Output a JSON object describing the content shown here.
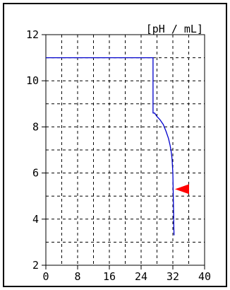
{
  "chart_data": {
    "type": "line",
    "units_label": "[pH / mL]",
    "xlim": [
      0,
      40
    ],
    "ylim": [
      2,
      12
    ],
    "x_ticks": [
      0,
      8,
      16,
      24,
      32,
      40
    ],
    "y_ticks": [
      2,
      4,
      6,
      8,
      10,
      12
    ],
    "x_grid_step": 4,
    "y_grid_step": 1,
    "grid": "dotted",
    "series": [
      {
        "color": "#0000cc",
        "x": [
          0,
          27.0,
          27.0,
          27.4,
          28.0,
          28.8,
          29.6,
          30.3,
          30.9,
          31.3,
          31.6,
          31.8,
          32.0,
          32.1,
          32.2,
          32.25,
          32.3
        ],
        "y": [
          11.0,
          11.0,
          8.6,
          8.6,
          8.45,
          8.3,
          8.1,
          7.8,
          7.5,
          7.2,
          6.9,
          6.6,
          6.0,
          5.0,
          4.2,
          3.6,
          3.3
        ]
      }
    ],
    "marker": {
      "shape": "left-pointing triangle",
      "y": 5.3,
      "color": "#ff0000"
    }
  }
}
